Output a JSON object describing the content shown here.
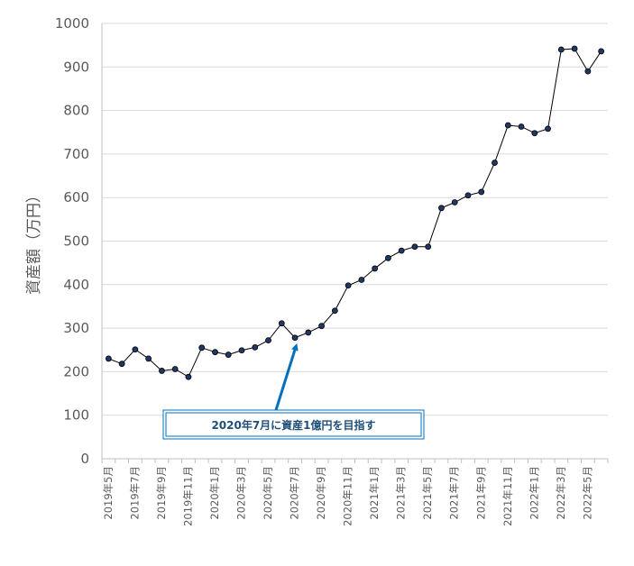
{
  "chart_data": {
    "type": "line",
    "title": "",
    "xlabel": "",
    "ylabel": "資産額（万円）",
    "ylim": [
      0,
      1000
    ],
    "yticks": [
      0,
      100,
      200,
      300,
      400,
      500,
      600,
      700,
      800,
      900,
      1000
    ],
    "grid": true,
    "legend": "none",
    "line_color": "#000000",
    "marker_color": "#1f3864",
    "xtick_labels": [
      "2019年5月",
      "2019年7月",
      "2019年9月",
      "2019年11月",
      "2020年1月",
      "2020年3月",
      "2020年5月",
      "2020年7月",
      "2020年9月",
      "2020年11月",
      "2021年1月",
      "2021年3月",
      "2021年5月",
      "2021年7月",
      "2021年9月",
      "2021年11月",
      "2022年1月",
      "2022年3月",
      "2022年5月"
    ],
    "series": [
      {
        "values": [
          230,
          218,
          251,
          230,
          202,
          206,
          188,
          255,
          245,
          239,
          249,
          256,
          272,
          311,
          278,
          290,
          305,
          340,
          398,
          411,
          437,
          461,
          478,
          487,
          487,
          576,
          589,
          605,
          613,
          680,
          766,
          763,
          748,
          758,
          940,
          942,
          890,
          936
        ]
      }
    ],
    "annotation": {
      "text": "2020年7月に資産1億円を目指す",
      "target_index": 14,
      "color": "#0070c0"
    }
  }
}
